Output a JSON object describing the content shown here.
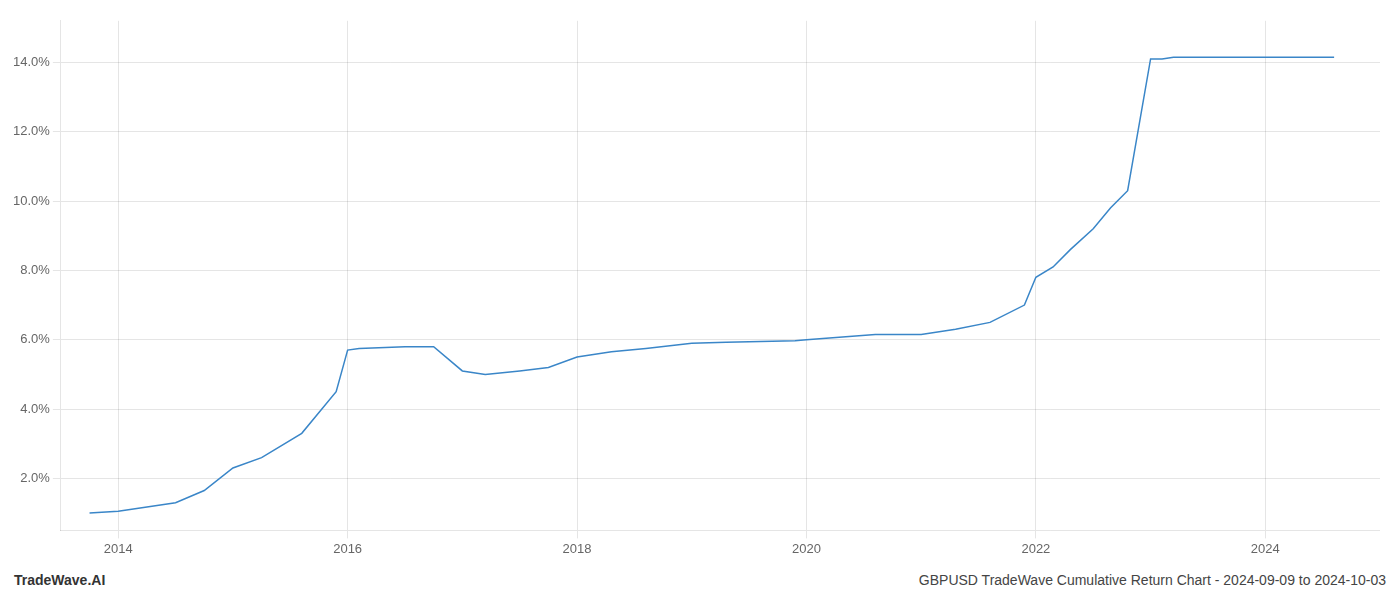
{
  "chart_data": {
    "type": "line",
    "title": "GBPUSD TradeWave Cumulative Return Chart - 2024-09-09 to 2024-10-03",
    "annotations": [
      "TradeWave.AI"
    ],
    "color": "#3a86c8",
    "x": [
      2013.75,
      2014.0,
      2014.5,
      2014.75,
      2015.0,
      2015.25,
      2015.6,
      2015.9,
      2016.0,
      2016.1,
      2016.5,
      2016.75,
      2017.0,
      2017.2,
      2017.5,
      2017.75,
      2018.0,
      2018.3,
      2018.6,
      2019.0,
      2019.3,
      2019.6,
      2019.9,
      2020.0,
      2020.2,
      2020.4,
      2020.6,
      2021.0,
      2021.3,
      2021.6,
      2021.9,
      2022.0,
      2022.15,
      2022.3,
      2022.5,
      2022.65,
      2022.8,
      2023.0,
      2023.1,
      2023.2,
      2023.3,
      2023.5,
      2023.6,
      2023.75,
      2024.0,
      2024.3,
      2024.6
    ],
    "values": [
      1.0,
      1.05,
      1.3,
      1.65,
      2.3,
      2.6,
      3.3,
      4.5,
      5.7,
      5.75,
      5.8,
      5.8,
      5.1,
      5.0,
      5.1,
      5.2,
      5.5,
      5.65,
      5.75,
      5.9,
      5.93,
      5.95,
      5.97,
      6.0,
      6.05,
      6.1,
      6.15,
      6.15,
      6.3,
      6.5,
      7.0,
      7.8,
      8.1,
      8.6,
      9.2,
      9.8,
      10.3,
      14.1,
      14.1,
      14.15,
      14.15,
      14.15,
      14.15,
      14.15,
      14.15,
      14.15,
      14.15
    ],
    "xlim": [
      2013.5,
      2025.0
    ],
    "ylim": [
      0.5,
      15.2
    ],
    "xticks": [
      2014,
      2016,
      2018,
      2020,
      2022,
      2024
    ],
    "yticks": [
      {
        "value": 2.0,
        "label": "2.0%"
      },
      {
        "value": 4.0,
        "label": "4.0%"
      },
      {
        "value": 6.0,
        "label": "6.0%"
      },
      {
        "value": 8.0,
        "label": "8.0%"
      },
      {
        "value": 10.0,
        "label": "10.0%"
      },
      {
        "value": 12.0,
        "label": "12.0%"
      },
      {
        "value": 14.0,
        "label": "14.0%"
      }
    ],
    "grid": true
  }
}
